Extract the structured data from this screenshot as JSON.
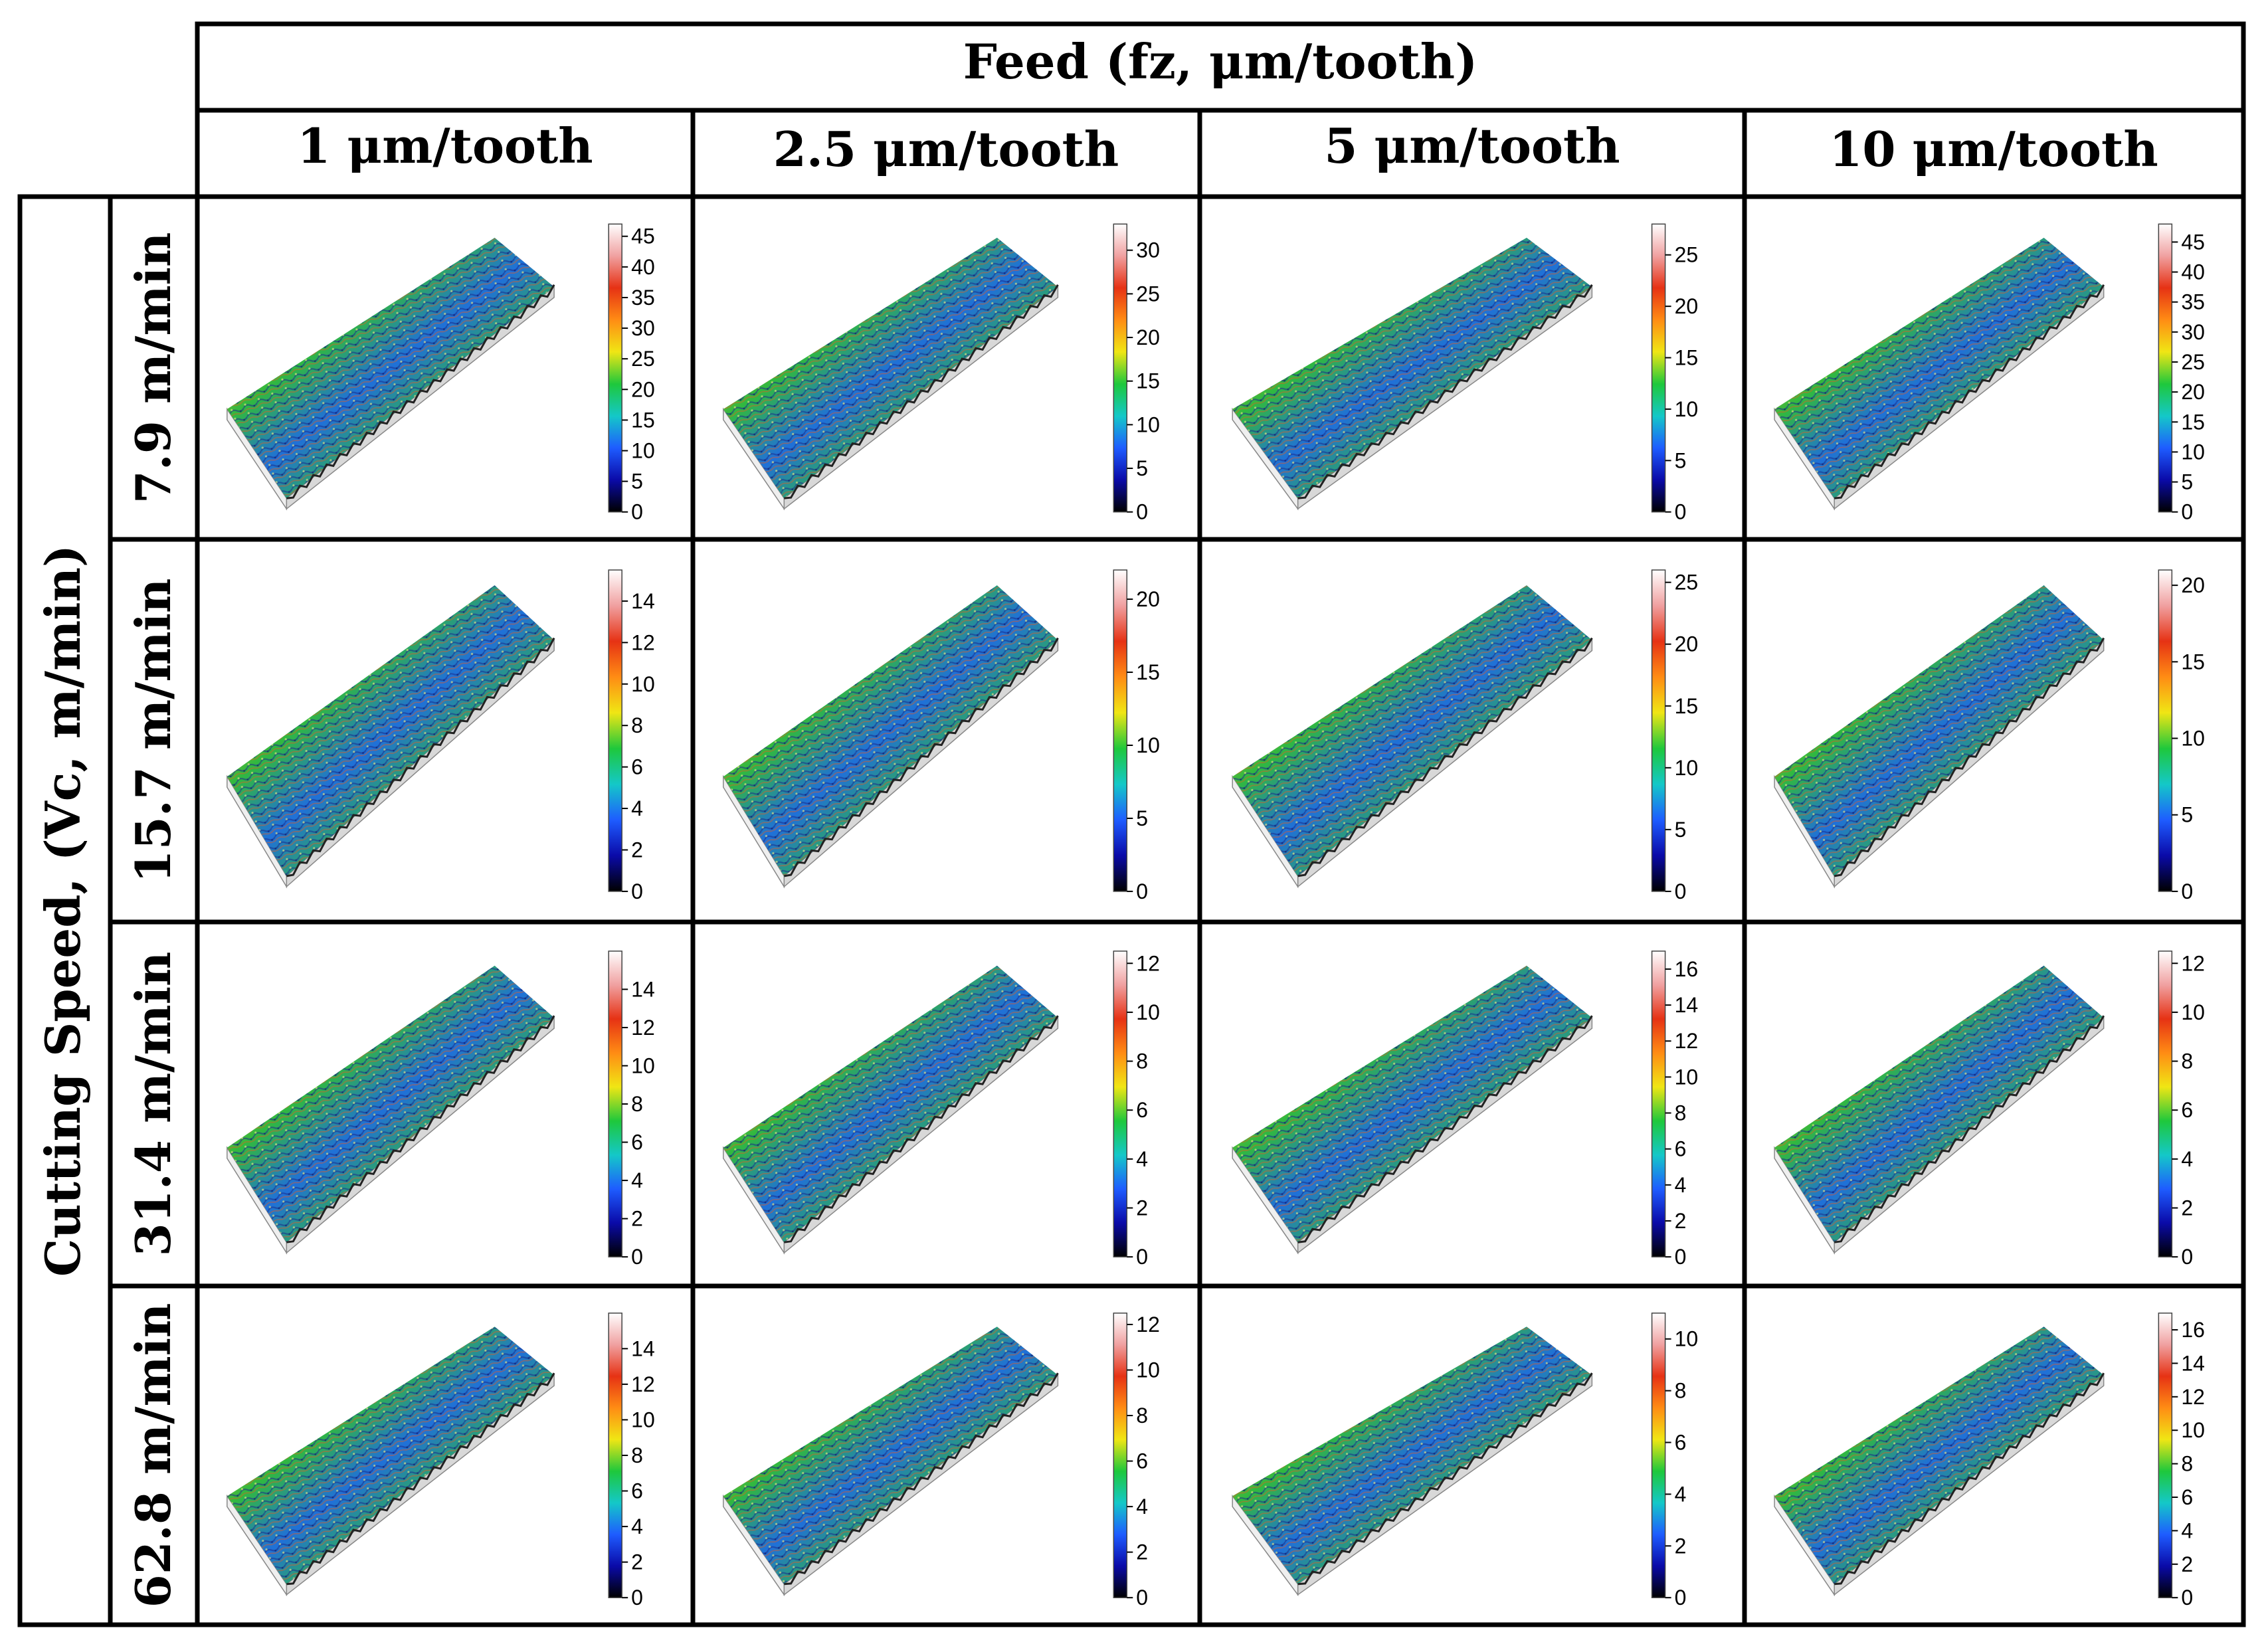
{
  "header": {
    "title": "Feed (fz, μm/tooth)",
    "feeds": [
      "1 μm/tooth",
      "2.5 μm/tooth",
      "5 μm/tooth",
      "10 μm/tooth"
    ]
  },
  "side": {
    "title": "Cutting Speed, (Vc, m/min)",
    "speeds": [
      "7.9 m/min",
      "15.7 m/min",
      "31.4 m/min",
      "62.8 m/min"
    ]
  },
  "colorscale": {
    "colors": [
      "#000000",
      "#0a0aa8",
      "#1e5cff",
      "#14c8c8",
      "#1ec83c",
      "#f0e614",
      "#ff8c14",
      "#e63214",
      "#f0a0a0",
      "#ffffff"
    ]
  },
  "chart_data": {
    "type": "heatmap",
    "description_rows": "Cutting speed (m/min)",
    "description_cols": "Feed (μm/tooth)",
    "cells": [
      {
        "row": 0,
        "col": 0,
        "ticks": [
          "0",
          "5",
          "10",
          "15",
          "20",
          "25",
          "30",
          "35",
          "40",
          "45"
        ],
        "max": 47
      },
      {
        "row": 0,
        "col": 1,
        "ticks": [
          "0",
          "5",
          "10",
          "15",
          "20",
          "25",
          "30"
        ],
        "max": 33
      },
      {
        "row": 0,
        "col": 2,
        "ticks": [
          "0",
          "5",
          "10",
          "15",
          "20",
          "25"
        ],
        "max": 28
      },
      {
        "row": 0,
        "col": 3,
        "ticks": [
          "0",
          "5",
          "10",
          "15",
          "20",
          "25",
          "30",
          "35",
          "40",
          "45"
        ],
        "max": 48
      },
      {
        "row": 1,
        "col": 0,
        "ticks": [
          "0",
          "2",
          "4",
          "6",
          "8",
          "10",
          "12",
          "14"
        ],
        "max": 15.5
      },
      {
        "row": 1,
        "col": 1,
        "ticks": [
          "0",
          "5",
          "10",
          "15",
          "20"
        ],
        "max": 22
      },
      {
        "row": 1,
        "col": 2,
        "ticks": [
          "0",
          "5",
          "10",
          "15",
          "20",
          "25"
        ],
        "max": 26
      },
      {
        "row": 1,
        "col": 3,
        "ticks": [
          "0",
          "5",
          "10",
          "15",
          "20"
        ],
        "max": 21
      },
      {
        "row": 2,
        "col": 0,
        "ticks": [
          "0",
          "2",
          "4",
          "6",
          "8",
          "10",
          "12",
          "14"
        ],
        "max": 16
      },
      {
        "row": 2,
        "col": 1,
        "ticks": [
          "0",
          "2",
          "4",
          "6",
          "8",
          "10",
          "12"
        ],
        "max": 12.5
      },
      {
        "row": 2,
        "col": 2,
        "ticks": [
          "0",
          "2",
          "4",
          "6",
          "8",
          "10",
          "12",
          "14",
          "16"
        ],
        "max": 17
      },
      {
        "row": 2,
        "col": 3,
        "ticks": [
          "0",
          "2",
          "4",
          "6",
          "8",
          "10",
          "12"
        ],
        "max": 12.5
      },
      {
        "row": 3,
        "col": 0,
        "ticks": [
          "0",
          "2",
          "4",
          "6",
          "8",
          "10",
          "12",
          "14"
        ],
        "max": 16
      },
      {
        "row": 3,
        "col": 1,
        "ticks": [
          "0",
          "2",
          "4",
          "6",
          "8",
          "10",
          "12"
        ],
        "max": 12.5
      },
      {
        "row": 3,
        "col": 2,
        "ticks": [
          "0",
          "2",
          "4",
          "6",
          "8",
          "10"
        ],
        "max": 11
      },
      {
        "row": 3,
        "col": 3,
        "ticks": [
          "0",
          "2",
          "4",
          "6",
          "8",
          "10",
          "12",
          "14",
          "16"
        ],
        "max": 17
      }
    ]
  }
}
